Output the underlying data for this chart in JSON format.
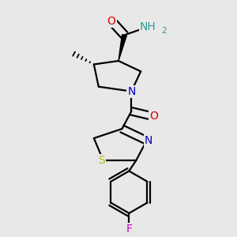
{
  "bg_color": "#e8e8e8",
  "atom_colors": {
    "C": "#000000",
    "N": "#0000cc",
    "O": "#dd0000",
    "S": "#bbbb00",
    "F": "#cc00cc",
    "H": "#339999"
  },
  "bond_color": "#000000",
  "bond_width": 1.6,
  "font_size_atom": 10
}
